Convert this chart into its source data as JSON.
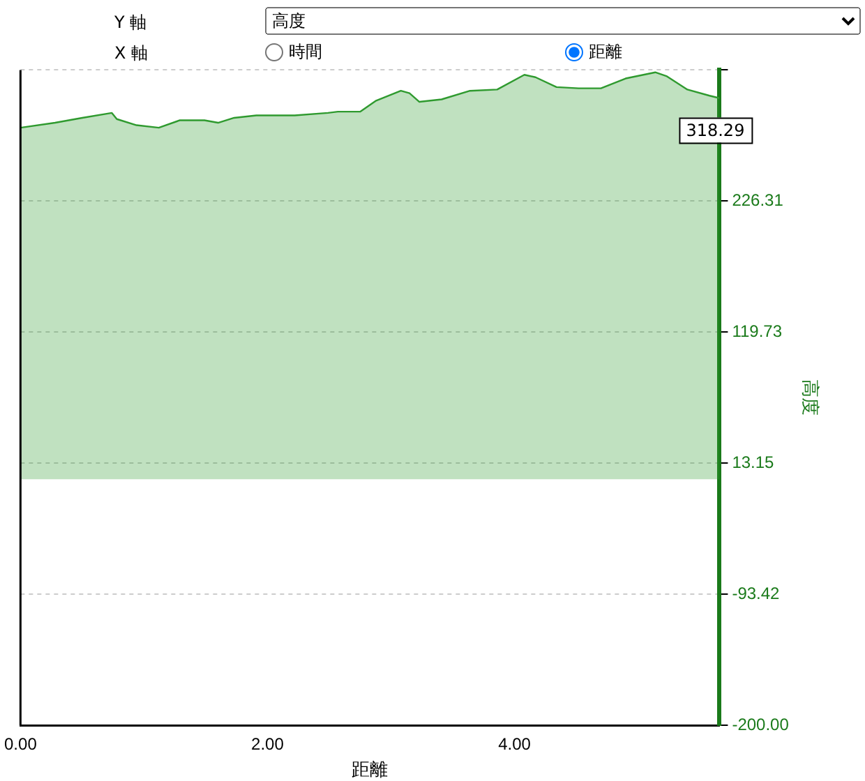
{
  "chart_data": {
    "type": "area",
    "xlabel": "距離",
    "ylabel": "高度",
    "x": [
      0,
      0.28,
      0.5,
      0.74,
      0.78,
      0.94,
      1.12,
      1.29,
      1.49,
      1.6,
      1.73,
      1.91,
      2.22,
      2.49,
      2.57,
      2.75,
      2.88,
      3.08,
      3.15,
      3.23,
      3.41,
      3.64,
      3.86,
      4.08,
      4.17,
      4.34,
      4.52,
      4.7,
      4.9,
      5.14,
      5.23,
      5.4,
      5.58,
      5.66
    ],
    "series": [
      {
        "color": "#2f9a2f",
        "values": [
          286,
          290,
          294,
          298,
          293,
          288,
          286,
          292,
          292,
          290,
          294,
          296,
          296,
          298,
          299,
          299,
          308,
          316,
          314,
          307,
          309,
          316,
          317,
          329,
          327,
          319,
          318,
          318,
          326,
          331,
          328,
          317,
          312,
          310
        ]
      }
    ],
    "xlim": [
      0,
      5.66
    ],
    "xticks": [
      {
        "value": 0,
        "label": "0.00"
      },
      {
        "value": 2,
        "label": "2.00"
      },
      {
        "value": 4,
        "label": "4.00"
      }
    ],
    "ylim": [
      -200,
      332.89
    ],
    "yticks": [
      {
        "value": -200,
        "label": "-200.00"
      },
      -93.42,
      13.15,
      119.73,
      226.31,
      {
        "value": 332.89,
        "label": null
      }
    ],
    "grid": "y",
    "legend": false,
    "annotations": [
      "Y 軸",
      "X 軸",
      "時間",
      "318.29"
    ]
  }
}
